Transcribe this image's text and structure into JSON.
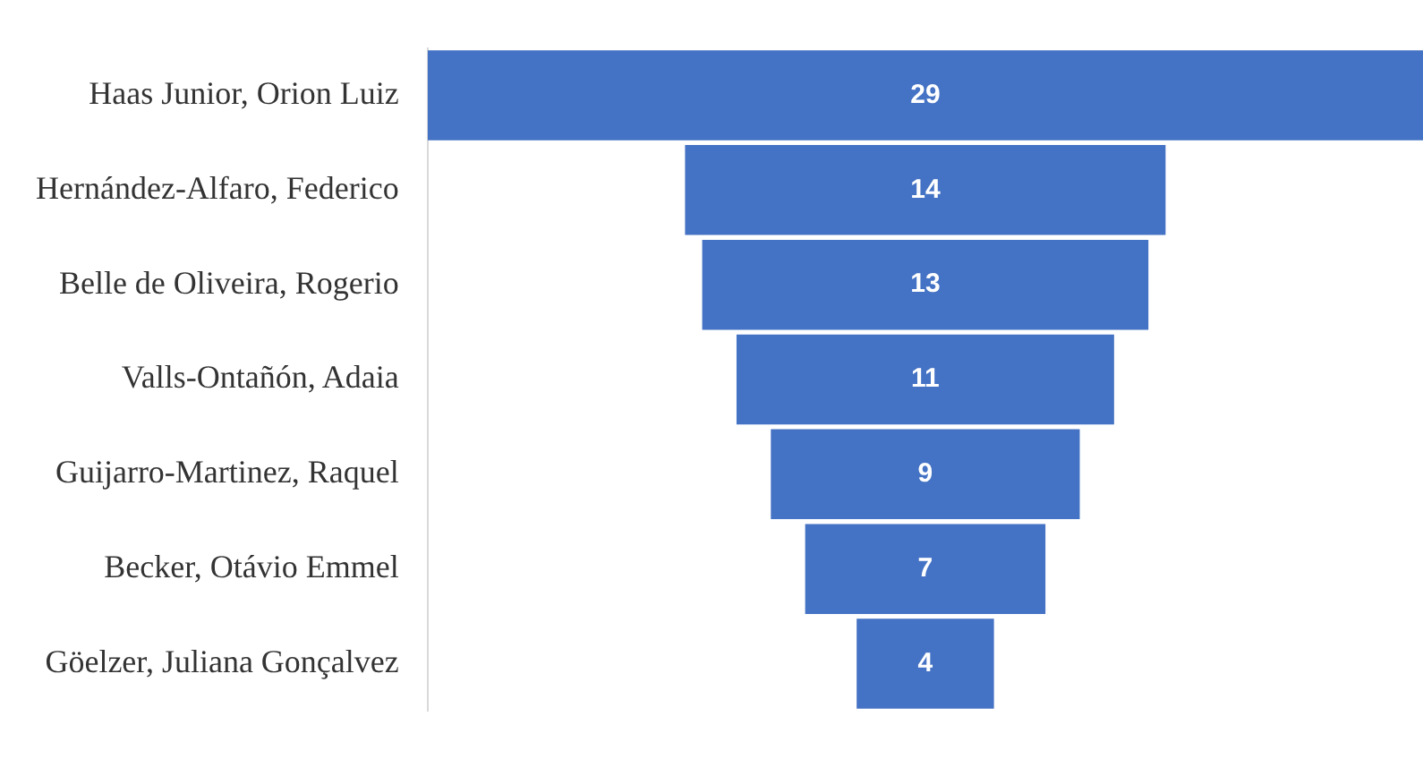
{
  "chart_data": {
    "type": "other",
    "categories": [
      "Haas Junior, Orion Luiz",
      "Hernández-Alfaro, Federico",
      "Belle de Oliveira, Rogerio",
      "Valls-Ontañón, Adaia",
      "Guijarro-Martinez, Raquel",
      "Becker, Otávio Emmel",
      "Göelzer, Juliana Gonçalvez"
    ],
    "values": [
      29,
      14,
      13,
      11,
      9,
      7,
      4
    ],
    "color": "#4472c4",
    "data_labels": true
  }
}
